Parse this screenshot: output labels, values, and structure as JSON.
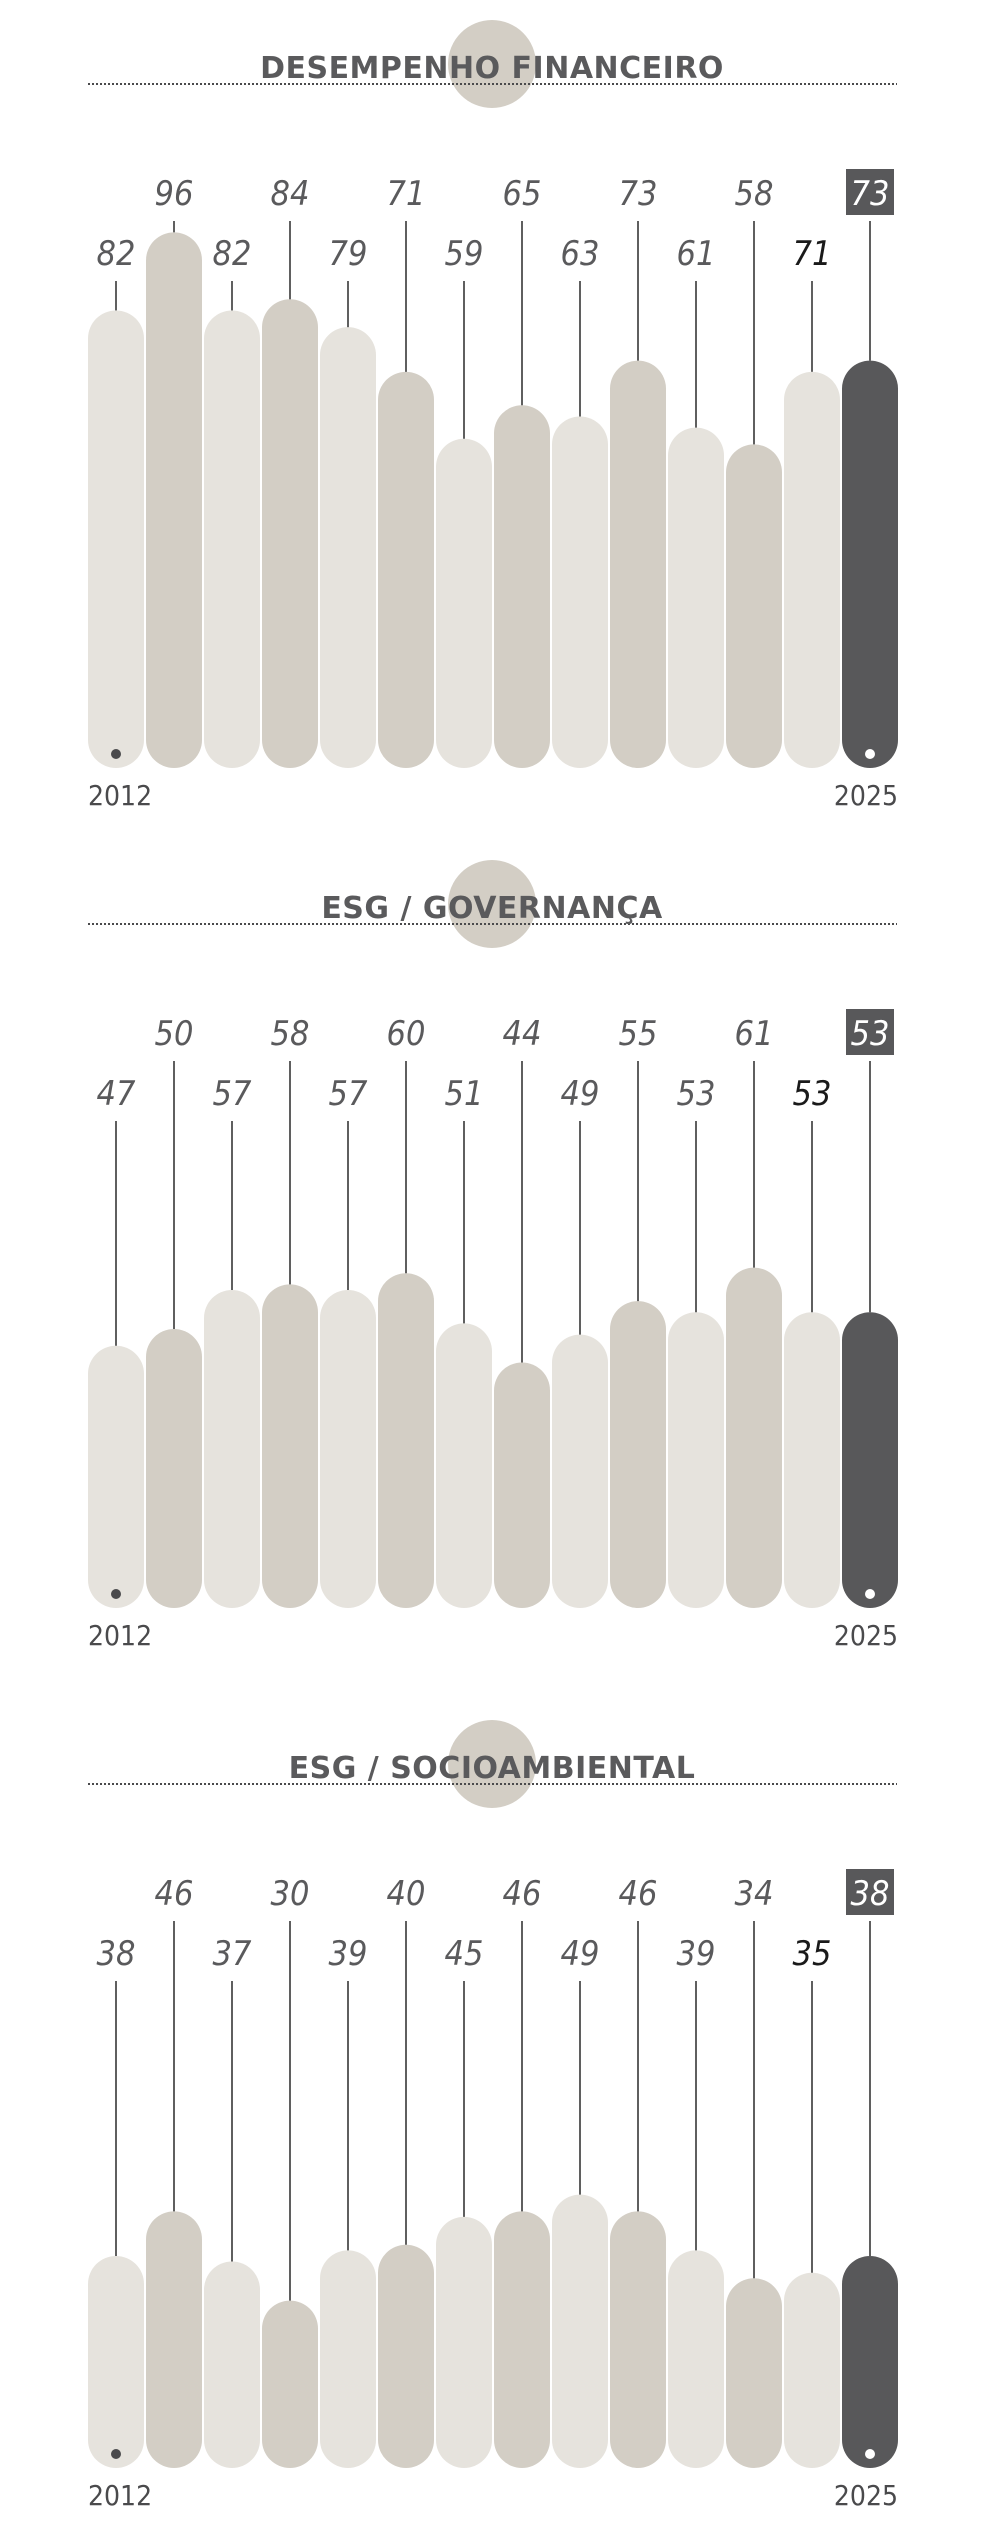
{
  "chart_data": [
    {
      "type": "bar",
      "title": "DESEMPENHO FINANCEIRO",
      "start_label": "2012",
      "end_label": "2025",
      "values": [
        82,
        96,
        82,
        84,
        79,
        71,
        59,
        65,
        63,
        73,
        61,
        58,
        71,
        73
      ],
      "ylim": [
        0,
        100
      ],
      "colors": {
        "light": "#e6e3dd",
        "mid": "#d3cec5",
        "dark": "#58585a",
        "text": "#5a5a5c"
      }
    },
    {
      "type": "bar",
      "title": "ESG / GOVERNANÇA",
      "start_label": "2012",
      "end_label": "2025",
      "values": [
        47,
        50,
        57,
        58,
        57,
        60,
        51,
        44,
        49,
        55,
        53,
        61,
        53,
        53
      ],
      "ylim": [
        0,
        100
      ],
      "colors": {
        "light": "#e6e3dd",
        "mid": "#d3cec5",
        "dark": "#58585a",
        "text": "#5a5a5c"
      }
    },
    {
      "type": "bar",
      "title": "ESG / SOCIOAMBIENTAL",
      "start_label": "2012",
      "end_label": "2025",
      "values": [
        38,
        46,
        37,
        30,
        39,
        40,
        45,
        46,
        49,
        46,
        39,
        34,
        35,
        38
      ],
      "ylim": [
        0,
        100
      ],
      "colors": {
        "light": "#e6e3dd",
        "mid": "#d3cec5",
        "dark": "#58585a",
        "text": "#5a5a5c"
      }
    }
  ]
}
